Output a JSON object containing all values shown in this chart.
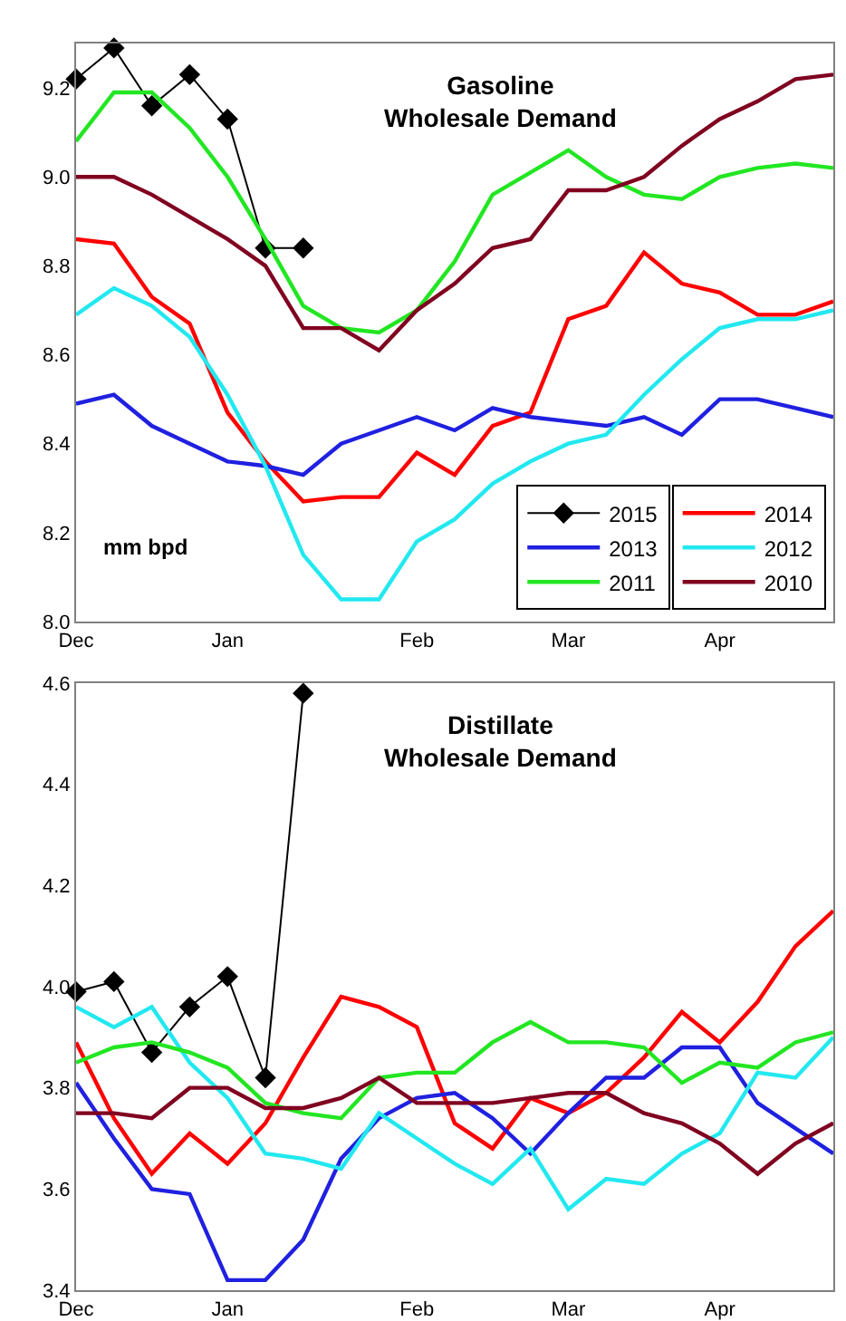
{
  "chart_data": [
    {
      "type": "line",
      "title": "Gasoline\nWholesale Demand",
      "annotations": [
        "mm bpd"
      ],
      "categories": [
        "Dec",
        null,
        null,
        null,
        "Jan",
        null,
        null,
        null,
        null,
        "Feb",
        null,
        null,
        null,
        "Mar",
        null,
        null,
        null,
        "Apr",
        null,
        null,
        null
      ],
      "ylim": [
        8.0,
        9.3
      ],
      "yticks": [
        {
          "value": 8.0,
          "label": "8.0"
        },
        {
          "value": 8.2,
          "label": "8.2"
        },
        {
          "value": 8.4,
          "label": "8.4"
        },
        {
          "value": 8.6,
          "label": "8.6"
        },
        {
          "value": 8.8,
          "label": "8.8"
        },
        {
          "value": 9.0,
          "label": "9.0"
        },
        {
          "value": 9.2,
          "label": "9.2"
        }
      ],
      "grid": false,
      "legend": "bottom right",
      "series": [
        {
          "name": "2015",
          "color": "#000000",
          "marker": "diamond",
          "values": [
            9.22,
            9.29,
            9.16,
            9.23,
            9.13,
            8.84,
            8.84,
            null,
            null,
            null,
            null,
            null,
            null,
            null,
            null,
            null,
            null,
            null,
            null,
            null,
            null
          ]
        },
        {
          "name": "2014",
          "color": "#ff0000",
          "values": [
            8.86,
            8.85,
            8.73,
            8.67,
            8.47,
            8.36,
            8.27,
            8.28,
            8.28,
            8.38,
            8.33,
            8.44,
            8.47,
            8.68,
            8.71,
            8.83,
            8.76,
            8.74,
            8.69,
            8.69,
            8.72
          ]
        },
        {
          "name": "2013",
          "color": "#2020e0",
          "values": [
            8.49,
            8.51,
            8.44,
            8.4,
            8.36,
            8.35,
            8.33,
            8.4,
            8.43,
            8.46,
            8.43,
            8.48,
            8.46,
            8.45,
            8.44,
            8.46,
            8.42,
            8.5,
            8.5,
            8.48,
            8.46
          ]
        },
        {
          "name": "2012",
          "color": "#22e8f0",
          "values": [
            8.69,
            8.75,
            8.71,
            8.64,
            8.51,
            8.35,
            8.15,
            8.05,
            8.05,
            8.18,
            8.23,
            8.31,
            8.36,
            8.4,
            8.42,
            8.51,
            8.59,
            8.66,
            8.68,
            8.68,
            8.7
          ]
        },
        {
          "name": "2011",
          "color": "#22e622",
          "values": [
            9.08,
            9.19,
            9.19,
            9.11,
            9.0,
            8.86,
            8.71,
            8.66,
            8.65,
            8.7,
            8.81,
            8.96,
            9.01,
            9.06,
            9.0,
            8.96,
            8.95,
            9.0,
            9.02,
            9.03,
            9.02
          ]
        },
        {
          "name": "2010",
          "color": "#800020",
          "values": [
            9.0,
            9.0,
            8.96,
            8.91,
            8.86,
            8.8,
            8.66,
            8.66,
            8.61,
            8.7,
            8.76,
            8.84,
            8.86,
            8.97,
            8.97,
            9.0,
            9.07,
            9.13,
            9.17,
            9.22,
            9.23
          ]
        }
      ]
    },
    {
      "type": "line",
      "title": "Distillate\nWholesale Demand",
      "categories": [
        "Dec",
        null,
        null,
        null,
        "Jan",
        null,
        null,
        null,
        null,
        "Feb",
        null,
        null,
        null,
        "Mar",
        null,
        null,
        null,
        "Apr",
        null,
        null,
        null
      ],
      "ylim": [
        3.4,
        4.6
      ],
      "yticks": [
        {
          "value": 3.4,
          "label": "3.4"
        },
        {
          "value": 3.6,
          "label": "3.6"
        },
        {
          "value": 3.8,
          "label": "3.8"
        },
        {
          "value": 4.0,
          "label": "4.0"
        },
        {
          "value": 4.2,
          "label": "4.2"
        },
        {
          "value": 4.4,
          "label": "4.4"
        },
        {
          "value": 4.6,
          "label": "4.6"
        }
      ],
      "grid": false,
      "series": [
        {
          "color": "#000000",
          "marker": "diamond",
          "values": [
            3.99,
            4.01,
            3.87,
            3.96,
            4.02,
            3.82,
            4.58,
            null,
            null,
            null,
            null,
            null,
            null,
            null,
            null,
            null,
            null,
            null,
            null,
            null,
            null
          ]
        },
        {
          "color": "#ff0000",
          "values": [
            3.89,
            3.74,
            3.63,
            3.71,
            3.65,
            3.73,
            3.86,
            3.98,
            3.96,
            3.92,
            3.73,
            3.68,
            3.78,
            3.75,
            3.79,
            3.86,
            3.95,
            3.89,
            3.97,
            4.08,
            4.15
          ]
        },
        {
          "color": "#2020e0",
          "values": [
            3.81,
            3.7,
            3.6,
            3.59,
            3.42,
            3.42,
            3.5,
            3.66,
            3.74,
            3.78,
            3.79,
            3.74,
            3.67,
            3.75,
            3.82,
            3.82,
            3.88,
            3.88,
            3.77,
            3.72,
            3.67
          ]
        },
        {
          "color": "#22e8f0",
          "values": [
            3.96,
            3.92,
            3.96,
            3.85,
            3.78,
            3.67,
            3.66,
            3.64,
            3.75,
            3.7,
            3.65,
            3.61,
            3.68,
            3.56,
            3.62,
            3.61,
            3.67,
            3.71,
            3.83,
            3.82,
            3.9
          ]
        },
        {
          "color": "#22e622",
          "values": [
            3.85,
            3.88,
            3.89,
            3.87,
            3.84,
            3.77,
            3.75,
            3.74,
            3.82,
            3.83,
            3.83,
            3.89,
            3.93,
            3.89,
            3.89,
            3.88,
            3.81,
            3.85,
            3.84,
            3.89,
            3.91
          ]
        },
        {
          "color": "#800020",
          "values": [
            3.75,
            3.75,
            3.74,
            3.8,
            3.8,
            3.76,
            3.76,
            3.78,
            3.82,
            3.77,
            3.77,
            3.77,
            3.78,
            3.79,
            3.79,
            3.75,
            3.73,
            3.69,
            3.63,
            3.69,
            3.73
          ]
        }
      ]
    }
  ]
}
